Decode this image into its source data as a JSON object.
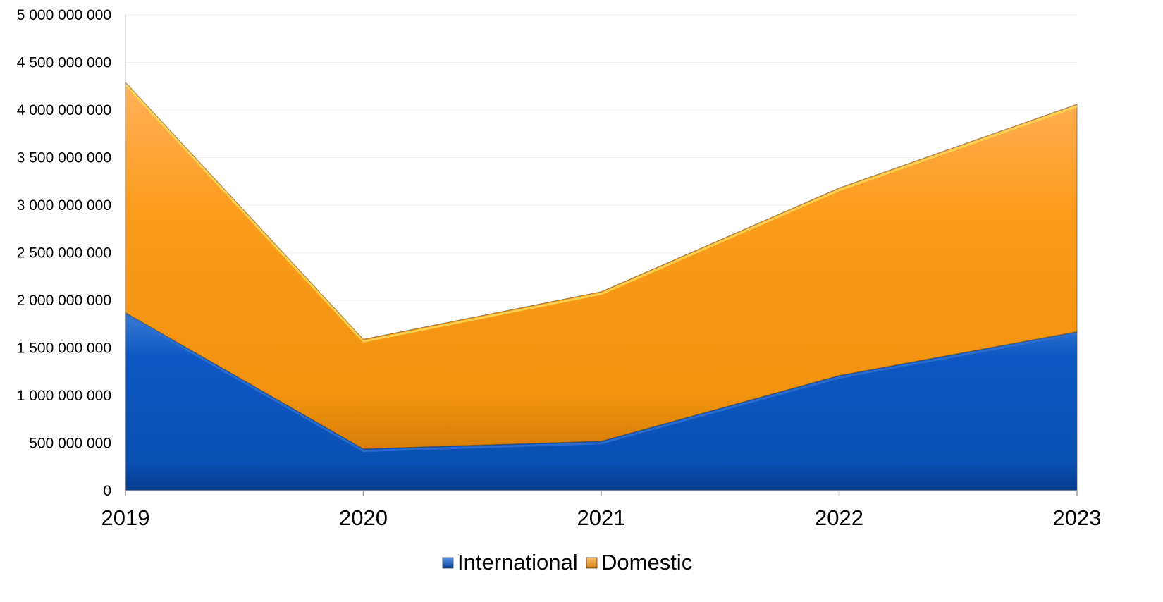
{
  "chart_data": {
    "type": "area",
    "stacked": true,
    "categories": [
      "2019",
      "2020",
      "2021",
      "2022",
      "2023"
    ],
    "series": [
      {
        "name": "International",
        "values": [
          1870000000,
          440000000,
          520000000,
          1210000000,
          1670000000
        ],
        "color": "#0a52b8"
      },
      {
        "name": "Domestic",
        "values": [
          2420000000,
          1150000000,
          1570000000,
          1970000000,
          2390000000
        ],
        "color": "#f39a14"
      }
    ],
    "ylim": [
      0,
      5000000000
    ],
    "yticks": [
      {
        "value": 0,
        "label": "0"
      },
      {
        "value": 500000000,
        "label": "500 000 000"
      },
      {
        "value": 1000000000,
        "label": "1 000 000 000"
      },
      {
        "value": 1500000000,
        "label": "1 500 000 000"
      },
      {
        "value": 2000000000,
        "label": "2 000 000 000"
      },
      {
        "value": 2500000000,
        "label": "2 500 000 000"
      },
      {
        "value": 3000000000,
        "label": "3 000 000 000"
      },
      {
        "value": 3500000000,
        "label": "3 500 000 000"
      },
      {
        "value": 4000000000,
        "label": "4 000 000 000"
      },
      {
        "value": 4500000000,
        "label": "4 500 000 000"
      },
      {
        "value": 5000000000,
        "label": "5 000 000 000"
      }
    ],
    "title": "",
    "xlabel": "",
    "ylabel": "",
    "grid": "horizontal",
    "legend": "bottom"
  }
}
